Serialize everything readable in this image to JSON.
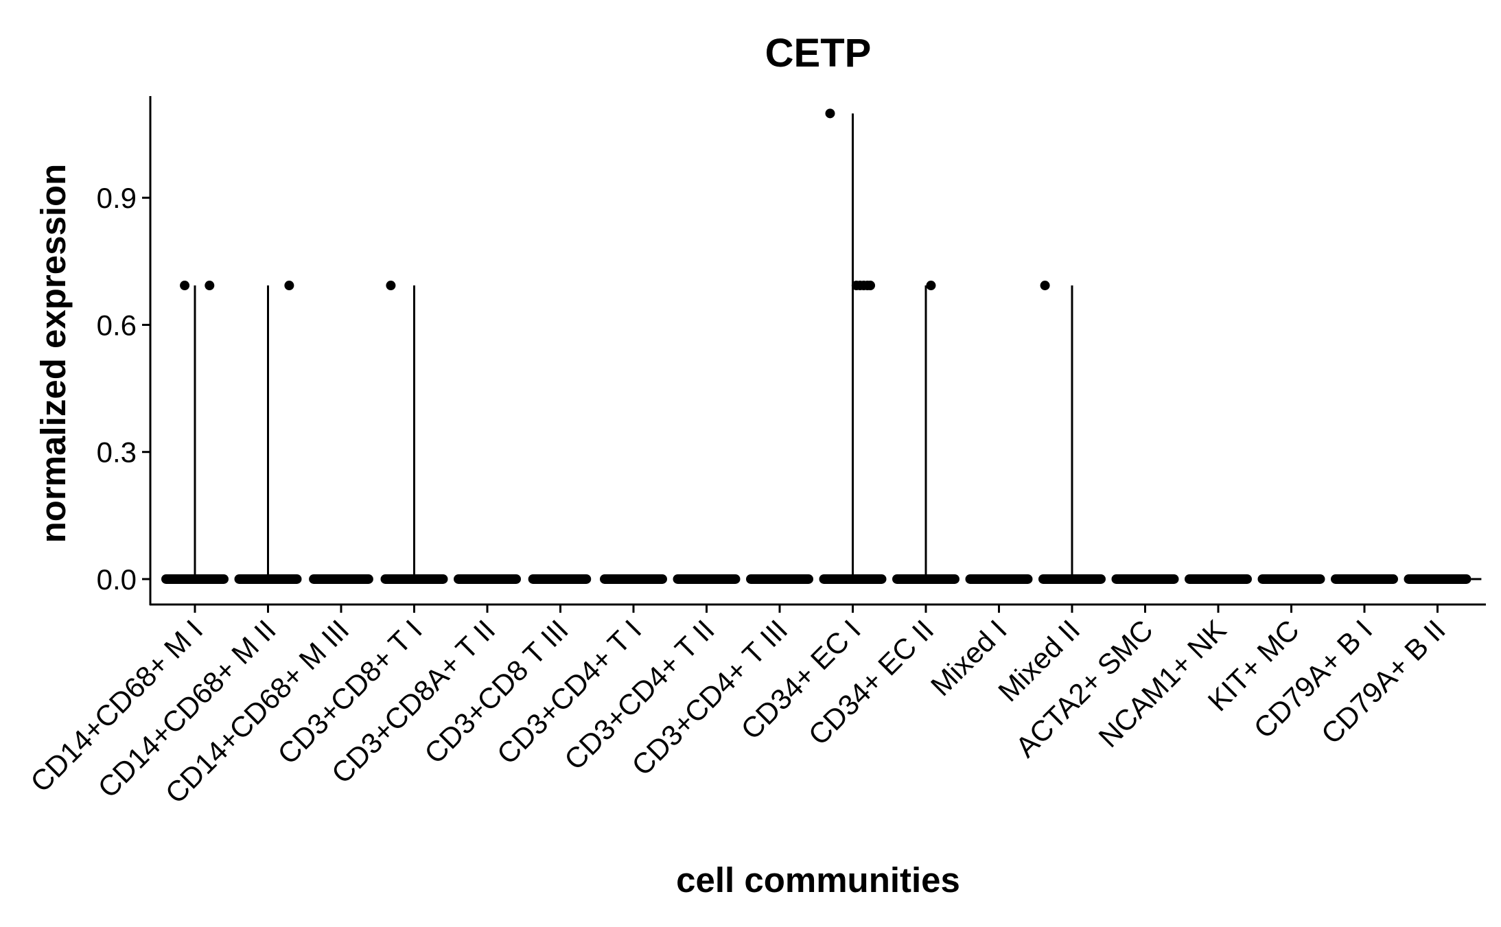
{
  "chart_data": {
    "type": "violin",
    "title": "CETP",
    "xlabel": "cell communities",
    "ylabel": "normalized expression",
    "ylim": [
      -0.06,
      1.14
    ],
    "yticks": [
      0.0,
      0.3,
      0.6,
      0.9
    ],
    "ytick_labels": [
      "0.0",
      "0.3",
      "0.6",
      "0.9"
    ],
    "grid": false,
    "legend": "none",
    "categories": [
      "CD14+CD68+ M I",
      "CD14+CD68+ M II",
      "CD14+CD68+ M III",
      "CD3+CD8+ T I",
      "CD3+CD8A+ T II",
      "CD3+CD8 T III",
      "CD3+CD4+ T I",
      "CD3+CD4+ T II",
      "CD3+CD4+ T III",
      "CD34+ EC I",
      "CD34+ EC II",
      "Mixed I",
      "Mixed II",
      "ACTA2+ SMC",
      "NCAM1+ NK",
      "KIT+ MC",
      "CD79A+ B I",
      "CD79A+ B II"
    ],
    "violin_max": [
      0.693,
      0.693,
      0,
      0.693,
      0,
      0,
      0,
      0,
      0,
      1.099,
      0.693,
      0,
      0.693,
      0,
      0,
      0,
      0,
      0
    ],
    "points": [
      {
        "category": "CD14+CD68+ M I",
        "y": 0.693,
        "jitter": -0.14
      },
      {
        "category": "CD14+CD68+ M I",
        "y": 0.693,
        "jitter": 0.2
      },
      {
        "category": "CD14+CD68+ M II",
        "y": 0.693,
        "jitter": 0.29
      },
      {
        "category": "CD3+CD8+ T I",
        "y": 0.693,
        "jitter": -0.32
      },
      {
        "category": "CD34+ EC I",
        "y": 1.099,
        "jitter": -0.31
      },
      {
        "category": "CD34+ EC I",
        "y": 0.693,
        "jitter": 0.05
      },
      {
        "category": "CD34+ EC I",
        "y": 0.693,
        "jitter": 0.1
      },
      {
        "category": "CD34+ EC I",
        "y": 0.693,
        "jitter": 0.15
      },
      {
        "category": "CD34+ EC I",
        "y": 0.693,
        "jitter": 0.2
      },
      {
        "category": "CD34+ EC I",
        "y": 0.693,
        "jitter": 0.24
      },
      {
        "category": "CD34+ EC II",
        "y": 0.693,
        "jitter": 0.07
      },
      {
        "category": "Mixed II",
        "y": 0.693,
        "jitter": -0.37
      }
    ],
    "zero_band": [
      [
        -0.46,
        0.46
      ],
      [
        -0.46,
        0.46
      ],
      [
        -0.44,
        0.44
      ],
      [
        -0.46,
        0.46
      ],
      [
        -0.46,
        0.46
      ],
      [
        -0.44,
        0.42
      ],
      [
        -0.46,
        0.46
      ],
      [
        -0.46,
        0.46
      ],
      [
        -0.46,
        0.46
      ],
      [
        -0.46,
        0.46
      ],
      [
        -0.46,
        0.46
      ],
      [
        -0.46,
        0.46
      ],
      [
        -0.46,
        0.46
      ],
      [
        -0.46,
        0.46
      ],
      [
        -0.46,
        0.46
      ],
      [
        -0.46,
        0.46
      ],
      [
        -0.46,
        0.46
      ],
      [
        -0.46,
        0.46
      ]
    ]
  }
}
